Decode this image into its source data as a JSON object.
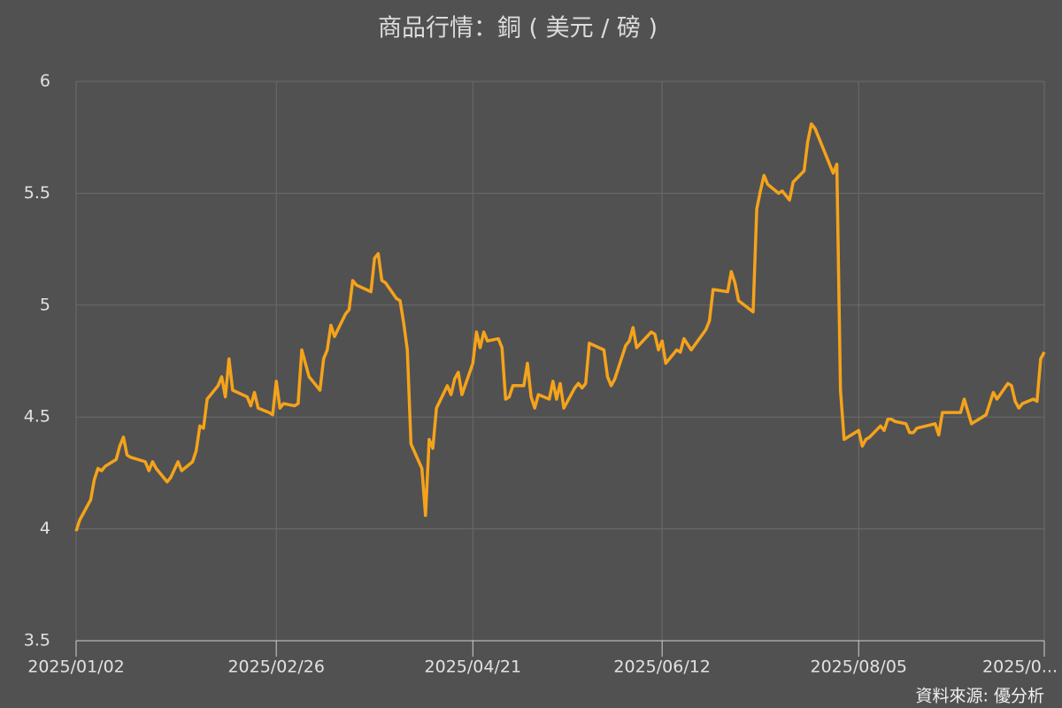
{
  "chart_data": {
    "type": "line",
    "title": "商品行情：銅 ( 美元 / 磅 )",
    "source": "資料來源: 優分析",
    "color": "#f5a31a",
    "grid": true,
    "x": [
      "2025/01/02",
      "2025/01/03",
      "2025/01/06",
      "2025/01/07",
      "2025/01/08",
      "2025/01/09",
      "2025/01/10",
      "2025/01/13",
      "2025/01/14",
      "2025/01/15",
      "2025/01/16",
      "2025/01/17",
      "2025/01/21",
      "2025/01/22",
      "2025/01/23",
      "2025/01/24",
      "2025/01/27",
      "2025/01/28",
      "2025/01/30",
      "2025/01/31",
      "2025/02/03",
      "2025/02/04",
      "2025/02/05",
      "2025/02/06",
      "2025/02/07",
      "2025/02/10",
      "2025/02/11",
      "2025/02/12",
      "2025/02/13",
      "2025/02/14",
      "2025/02/18",
      "2025/02/19",
      "2025/02/20",
      "2025/02/21",
      "2025/02/24",
      "2025/02/25",
      "2025/02/26",
      "2025/02/27",
      "2025/02/28",
      "2025/03/03",
      "2025/03/04",
      "2025/03/05",
      "2025/03/06",
      "2025/03/07",
      "2025/03/10",
      "2025/03/11",
      "2025/03/12",
      "2025/03/13",
      "2025/03/14",
      "2025/03/17",
      "2025/03/18",
      "2025/03/19",
      "2025/03/20",
      "2025/03/24",
      "2025/03/25",
      "2025/03/26",
      "2025/03/27",
      "2025/03/28",
      "2025/03/31",
      "2025/04/01",
      "2025/04/02",
      "2025/04/03",
      "2025/04/04",
      "2025/04/07",
      "2025/04/08",
      "2025/04/09",
      "2025/04/10",
      "2025/04/11",
      "2025/04/14",
      "2025/04/15",
      "2025/04/16",
      "2025/04/17",
      "2025/04/18",
      "2025/04/21",
      "2025/04/22",
      "2025/04/23",
      "2025/04/24",
      "2025/04/25",
      "2025/04/28",
      "2025/04/29",
      "2025/04/30",
      "2025/05/01",
      "2025/05/02",
      "2025/05/05",
      "2025/05/06",
      "2025/05/07",
      "2025/05/08",
      "2025/05/09",
      "2025/05/12",
      "2025/05/13",
      "2025/05/14",
      "2025/05/15",
      "2025/05/16",
      "2025/05/19",
      "2025/05/20",
      "2025/05/21",
      "2025/05/22",
      "2025/05/23",
      "2025/05/27",
      "2025/05/28",
      "2025/05/29",
      "2025/05/30",
      "2025/06/02",
      "2025/06/03",
      "2025/06/04",
      "2025/06/05",
      "2025/06/09",
      "2025/06/10",
      "2025/06/11",
      "2025/06/12",
      "2025/06/13",
      "2025/06/16",
      "2025/06/17",
      "2025/06/18",
      "2025/06/20",
      "2025/06/24",
      "2025/06/25",
      "2025/06/26",
      "2025/06/30",
      "2025/07/01",
      "2025/07/02",
      "2025/07/03",
      "2025/07/07",
      "2025/07/08",
      "2025/07/09",
      "2025/07/10",
      "2025/07/11",
      "2025/07/14",
      "2025/07/15",
      "2025/07/17",
      "2025/07/18",
      "2025/07/21",
      "2025/07/22",
      "2025/07/23",
      "2025/07/24",
      "2025/07/29",
      "2025/07/30",
      "2025/07/31",
      "2025/08/01",
      "2025/08/04",
      "2025/08/05",
      "2025/08/06",
      "2025/08/07",
      "2025/08/08",
      "2025/08/11",
      "2025/08/12",
      "2025/08/13",
      "2025/08/14",
      "2025/08/15",
      "2025/08/18",
      "2025/08/19",
      "2025/08/20",
      "2025/08/21",
      "2025/08/26",
      "2025/08/27",
      "2025/08/28",
      "2025/09/02",
      "2025/09/03",
      "2025/09/05",
      "2025/09/08",
      "2025/09/09",
      "2025/09/11",
      "2025/09/12",
      "2025/09/15",
      "2025/09/16",
      "2025/09/17",
      "2025/09/18",
      "2025/09/19",
      "2025/09/22",
      "2025/09/23",
      "2025/09/24",
      "2025/09/25"
    ],
    "values": [
      3.99,
      4.04,
      4.13,
      4.22,
      4.27,
      4.26,
      4.28,
      4.31,
      4.37,
      4.41,
      4.33,
      4.32,
      4.3,
      4.26,
      4.3,
      4.27,
      4.21,
      4.23,
      4.3,
      4.26,
      4.3,
      4.35,
      4.46,
      4.45,
      4.58,
      4.64,
      4.68,
      4.59,
      4.76,
      4.62,
      4.59,
      4.55,
      4.61,
      4.54,
      4.52,
      4.51,
      4.66,
      4.54,
      4.56,
      4.55,
      4.56,
      4.8,
      4.74,
      4.68,
      4.62,
      4.76,
      4.8,
      4.91,
      4.86,
      4.96,
      4.98,
      5.11,
      5.09,
      5.06,
      5.21,
      5.23,
      5.11,
      5.1,
      5.03,
      5.02,
      4.92,
      4.8,
      4.38,
      4.27,
      4.06,
      4.4,
      4.36,
      4.54,
      4.64,
      4.6,
      4.67,
      4.7,
      4.6,
      4.74,
      4.88,
      4.81,
      4.88,
      4.84,
      4.85,
      4.81,
      4.58,
      4.59,
      4.64,
      4.64,
      4.74,
      4.59,
      4.54,
      4.6,
      4.58,
      4.66,
      4.58,
      4.65,
      4.54,
      4.63,
      4.65,
      4.63,
      4.65,
      4.83,
      4.8,
      4.68,
      4.64,
      4.67,
      4.82,
      4.84,
      4.9,
      4.81,
      4.88,
      4.87,
      4.8,
      4.84,
      4.74,
      4.8,
      4.79,
      4.85,
      4.8,
      4.89,
      4.93,
      5.07,
      5.06,
      5.15,
      5.1,
      5.02,
      4.97,
      5.43,
      5.51,
      5.58,
      5.54,
      5.5,
      5.51,
      5.47,
      5.55,
      5.6,
      5.73,
      5.81,
      5.79,
      5.59,
      5.63,
      4.62,
      4.4,
      4.43,
      4.44,
      4.37,
      4.4,
      4.41,
      4.46,
      4.44,
      4.49,
      4.49,
      4.48,
      4.47,
      4.43,
      4.43,
      4.45,
      4.47,
      4.42,
      4.52,
      4.52,
      4.58,
      4.47,
      4.5,
      4.51,
      4.61,
      4.58,
      4.65,
      4.64,
      4.57,
      4.54,
      4.56,
      4.58,
      4.57,
      4.76,
      4.79
    ],
    "xlim": [
      "2025/01/02",
      "2025/09/25"
    ],
    "xticks": [
      "2025/01/02",
      "2025/02/26",
      "2025/04/21",
      "2025/06/12",
      "2025/08/05",
      {
        "value": "2025/09/25",
        "label": "2025/0..."
      }
    ],
    "ylim": [
      3.5,
      6
    ],
    "yticks": [
      3.5,
      4,
      4.5,
      5,
      5.5,
      6
    ]
  }
}
